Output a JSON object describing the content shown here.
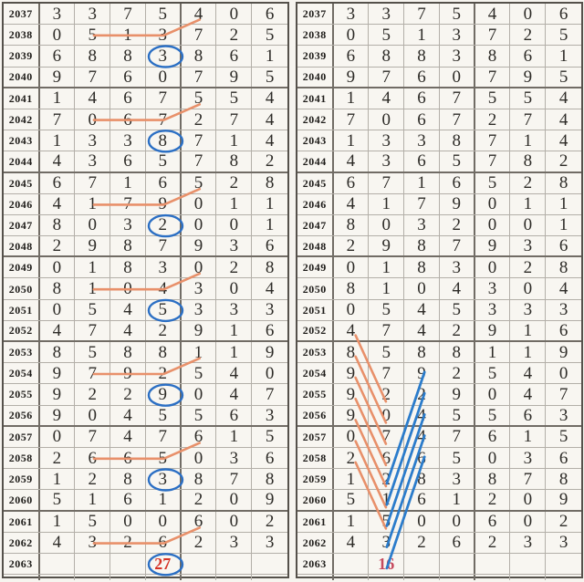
{
  "title": "Lottery digit trend chart, two side-by-side tables (years 2037-2063)",
  "palette": {
    "background": "#f6f4ef",
    "grid_line": "#b3afa8",
    "group_line": "#716c65",
    "outer_border": "#55514b",
    "digit_color": "#2d2b27",
    "year_color": "#1d1b18",
    "orange_line": "#e8906a",
    "blue_line": "#2b7ccb",
    "circle_blue": "#2b6fc4"
  },
  "summary": {
    "left": {
      "year": "2063",
      "col": 4,
      "value": "27",
      "circled": true,
      "color": "#d63226"
    },
    "right": {
      "year": "2063",
      "col": 2,
      "value": "16",
      "circled": false,
      "color": "#c64a5e"
    }
  },
  "annotations": {
    "left": {
      "circles": [
        {
          "year": 2039,
          "col": 4
        },
        {
          "year": 2043,
          "col": 4
        },
        {
          "year": 2047,
          "col": 4
        },
        {
          "year": 2051,
          "col": 4
        },
        {
          "year": 2055,
          "col": 4
        },
        {
          "year": 2059,
          "col": 4
        },
        {
          "year": 2063,
          "col": 4
        }
      ],
      "polylines": [
        {
          "points": [
            [
              2038,
              2
            ],
            [
              2038,
              4
            ],
            [
              2037,
              5
            ]
          ]
        },
        {
          "points": [
            [
              2042,
              2
            ],
            [
              2042,
              4
            ],
            [
              2041,
              5
            ]
          ]
        },
        {
          "points": [
            [
              2046,
              2
            ],
            [
              2046,
              4
            ],
            [
              2045,
              5
            ]
          ]
        },
        {
          "points": [
            [
              2050,
              2
            ],
            [
              2050,
              4
            ],
            [
              2049,
              5
            ]
          ]
        },
        {
          "points": [
            [
              2054,
              2
            ],
            [
              2054,
              4
            ],
            [
              2053,
              5
            ]
          ]
        },
        {
          "points": [
            [
              2058,
              2
            ],
            [
              2058,
              4
            ],
            [
              2057,
              5
            ]
          ]
        },
        {
          "points": [
            [
              2062,
              2
            ],
            [
              2062,
              4
            ],
            [
              2061,
              5
            ]
          ]
        }
      ]
    },
    "right": {
      "orange_lines": [
        {
          "from": [
            2052,
            1
          ],
          "to": [
            2055,
            2
          ]
        },
        {
          "from": [
            2053,
            1
          ],
          "to": [
            2056,
            2
          ]
        },
        {
          "from": [
            2054,
            1
          ],
          "to": [
            2057,
            2
          ]
        },
        {
          "from": [
            2055,
            1
          ],
          "to": [
            2058,
            2
          ]
        },
        {
          "from": [
            2056,
            1
          ],
          "to": [
            2059,
            2
          ]
        },
        {
          "from": [
            2057,
            1
          ],
          "to": [
            2060,
            2
          ]
        },
        {
          "from": [
            2058,
            1
          ],
          "to": [
            2061,
            2
          ]
        }
      ],
      "blue_lines": [
        {
          "from": [
            2054,
            3
          ],
          "to": [
            2059,
            2
          ]
        },
        {
          "from": [
            2055,
            3
          ],
          "to": [
            2060,
            2
          ]
        },
        {
          "from": [
            2056,
            3
          ],
          "to": [
            2061,
            2
          ]
        },
        {
          "from": [
            2057,
            3
          ],
          "to": [
            2062,
            2
          ]
        },
        {
          "from": [
            2058,
            3
          ],
          "to": [
            2063,
            2
          ]
        }
      ]
    }
  },
  "chart_data": {
    "type": "table",
    "title": "Seven-digit draw history repeated in two panels",
    "categories": [
      "2037",
      "2038",
      "2039",
      "2040",
      "2041",
      "2042",
      "2043",
      "2044",
      "2045",
      "2046",
      "2047",
      "2048",
      "2049",
      "2050",
      "2051",
      "2052",
      "2053",
      "2054",
      "2055",
      "2056",
      "2057",
      "2058",
      "2059",
      "2060",
      "2061",
      "2062",
      "2063"
    ],
    "rows": [
      [
        "3",
        "3",
        "7",
        "5",
        "4",
        "0",
        "6"
      ],
      [
        "0",
        "5",
        "1",
        "3",
        "7",
        "2",
        "5"
      ],
      [
        "6",
        "8",
        "8",
        "3",
        "8",
        "6",
        "1"
      ],
      [
        "9",
        "7",
        "6",
        "0",
        "7",
        "9",
        "5"
      ],
      [
        "1",
        "4",
        "6",
        "7",
        "5",
        "5",
        "4"
      ],
      [
        "7",
        "0",
        "6",
        "7",
        "2",
        "7",
        "4"
      ],
      [
        "1",
        "3",
        "3",
        "8",
        "7",
        "1",
        "4"
      ],
      [
        "4",
        "3",
        "6",
        "5",
        "7",
        "8",
        "2"
      ],
      [
        "6",
        "7",
        "1",
        "6",
        "5",
        "2",
        "8"
      ],
      [
        "4",
        "1",
        "7",
        "9",
        "0",
        "1",
        "1"
      ],
      [
        "8",
        "0",
        "3",
        "2",
        "0",
        "0",
        "1"
      ],
      [
        "2",
        "9",
        "8",
        "7",
        "9",
        "3",
        "6"
      ],
      [
        "0",
        "1",
        "8",
        "3",
        "0",
        "2",
        "8"
      ],
      [
        "8",
        "1",
        "0",
        "4",
        "3",
        "0",
        "4"
      ],
      [
        "0",
        "5",
        "4",
        "5",
        "3",
        "3",
        "3"
      ],
      [
        "4",
        "7",
        "4",
        "2",
        "9",
        "1",
        "6"
      ],
      [
        "8",
        "5",
        "8",
        "8",
        "1",
        "1",
        "9"
      ],
      [
        "9",
        "7",
        "9",
        "2",
        "5",
        "4",
        "0"
      ],
      [
        "9",
        "2",
        "2",
        "9",
        "0",
        "4",
        "7"
      ],
      [
        "9",
        "0",
        "4",
        "5",
        "5",
        "6",
        "3"
      ],
      [
        "0",
        "7",
        "4",
        "7",
        "6",
        "1",
        "5"
      ],
      [
        "2",
        "6",
        "6",
        "5",
        "0",
        "3",
        "6"
      ],
      [
        "1",
        "2",
        "8",
        "3",
        "8",
        "7",
        "8"
      ],
      [
        "5",
        "1",
        "6",
        "1",
        "2",
        "0",
        "9"
      ],
      [
        "1",
        "5",
        "0",
        "0",
        "6",
        "0",
        "2"
      ],
      [
        "4",
        "3",
        "2",
        "6",
        "2",
        "3",
        "3"
      ],
      [
        "",
        "",
        "",
        "",
        "",
        "",
        ""
      ]
    ],
    "layout_hints": {
      "row_group_thick_border_after_years": [
        2040,
        2044,
        2048,
        2052,
        2056,
        2060
      ],
      "column_group_thick_border_after_col": 4,
      "panels": 2
    }
  }
}
